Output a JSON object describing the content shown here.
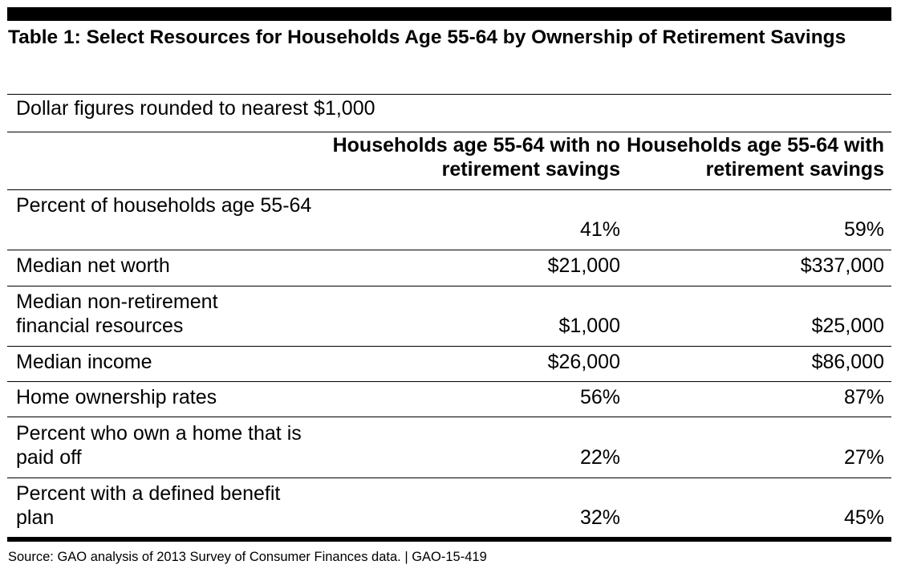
{
  "title": "Table 1: Select Resources for Households Age 55-64 by Ownership of Retirement Savings",
  "note": "Dollar figures rounded to nearest $1,000",
  "columns": [
    "Households age 55-64 with no retirement savings",
    "Households age 55-64 with retirement savings"
  ],
  "rows": [
    {
      "label": "Percent of households age 55-64",
      "no_savings": "41%",
      "with_savings": "59%"
    },
    {
      "label": "Median net worth",
      "no_savings": "$21,000",
      "with_savings": "$337,000"
    },
    {
      "label": "Median non-retirement financial resources",
      "no_savings": "$1,000",
      "with_savings": "$25,000"
    },
    {
      "label": "Median income",
      "no_savings": "$26,000",
      "with_savings": "$86,000"
    },
    {
      "label": "Home ownership rates",
      "no_savings": "56%",
      "with_savings": "87%"
    },
    {
      "label": "Percent who own a home that is paid off",
      "no_savings": "22%",
      "with_savings": "27%"
    },
    {
      "label": "Percent with a defined benefit plan",
      "no_savings": "32%",
      "with_savings": "45%"
    }
  ],
  "source": "Source: GAO analysis of 2013 Survey of Consumer Finances data. | GAO-15-419"
}
